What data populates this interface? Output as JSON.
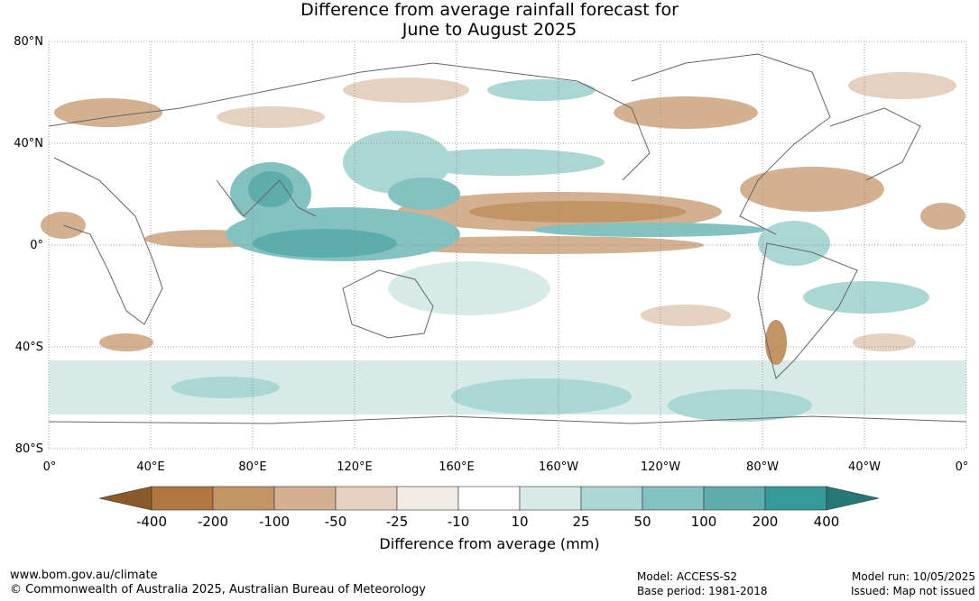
{
  "title_line1": "Difference from average rainfall forecast for",
  "title_line2": "June to August 2025",
  "lat_labels": [
    "80°N",
    "40°N",
    "0°",
    "40°S",
    "80°S"
  ],
  "lon_labels": [
    "0°",
    "40°E",
    "80°E",
    "120°E",
    "160°E",
    "160°W",
    "120°W",
    "80°W",
    "40°W",
    "0°"
  ],
  "legend": {
    "title": "Difference from average (mm)",
    "tick_labels": [
      "-400",
      "-200",
      "-100",
      "-50",
      "-25",
      "-10",
      "10",
      "25",
      "50",
      "100",
      "200",
      "400"
    ],
    "colors": [
      "#8b5a2b",
      "#b0763e",
      "#c39466",
      "#d3b08f",
      "#e4d1c0",
      "#f1ebe6",
      "#ffffff",
      "#d6ebe8",
      "#aad6d4",
      "#84c2c2",
      "#5eadad",
      "#36999a",
      "#267777"
    ]
  },
  "footer": {
    "website": "www.bom.gov.au/climate",
    "copyright": "© Commonwealth of Australia 2025, Australian Bureau of Meteorology",
    "model": "Model: ACCESS-S2",
    "base_period": "Base period: 1981-2018",
    "model_run": "Model run: 10/05/2025",
    "issued": "Issued: Map not issued"
  }
}
